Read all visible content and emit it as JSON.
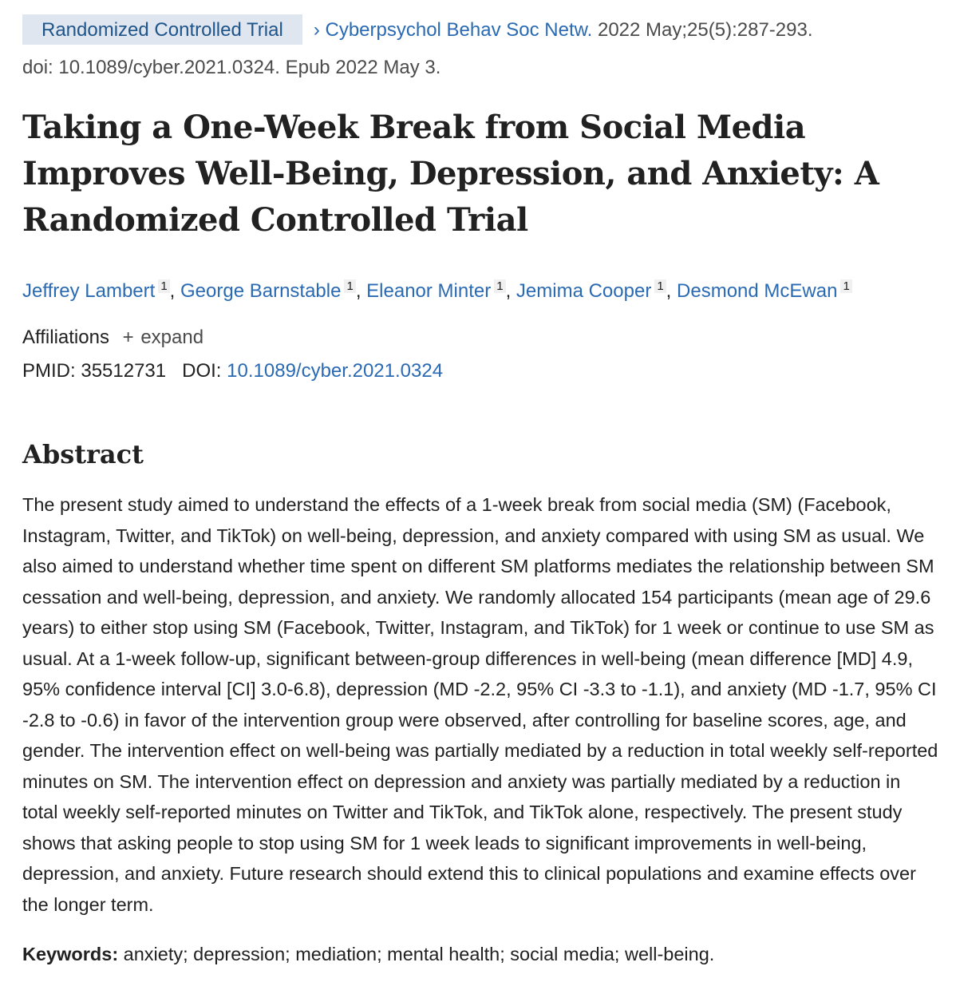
{
  "header": {
    "publication_type": "Randomized Controlled Trial",
    "journal": "Cyberpsychol Behav Soc Netw.",
    "citation": " 2022 May;25(5):287-293.",
    "doi_epub": "doi: 10.1089/cyber.2021.0324. Epub 2022 May 3."
  },
  "title": "Taking a One-Week Break from Social Media Improves Well-Being, Depression, and Anxiety: A Randomized Controlled Trial",
  "authors": [
    {
      "name": "Jeffrey Lambert",
      "aff": "1"
    },
    {
      "name": "George Barnstable",
      "aff": "1"
    },
    {
      "name": "Eleanor Minter",
      "aff": "1"
    },
    {
      "name": "Jemima Cooper",
      "aff": "1"
    },
    {
      "name": "Desmond McEwan",
      "aff": "1"
    }
  ],
  "affiliations": {
    "label": "Affiliations",
    "expand_icon": "plus-icon",
    "expand_label": "expand"
  },
  "ids": {
    "pmid_label": "PMID:",
    "pmid": "35512731",
    "doi_label": "DOI:",
    "doi": "10.1089/cyber.2021.0324"
  },
  "abstract": {
    "heading": "Abstract",
    "text": "The present study aimed to understand the effects of a 1-week break from social media (SM) (Facebook, Instagram, Twitter, and TikTok) on well-being, depression, and anxiety compared with using SM as usual. We also aimed to understand whether time spent on different SM platforms mediates the relationship between SM cessation and well-being, depression, and anxiety. We randomly allocated 154 participants (mean age of 29.6 years) to either stop using SM (Facebook, Twitter, Instagram, and TikTok) for 1 week or continue to use SM as usual. At a 1-week follow-up, significant between-group differences in well-being (mean difference [MD] 4.9, 95% confidence interval [CI] 3.0-6.8), depression (MD -2.2, 95% CI -3.3 to -1.1), and anxiety (MD -1.7, 95% CI -2.8 to -0.6) in favor of the intervention group were observed, after controlling for baseline scores, age, and gender. The intervention effect on well-being was partially mediated by a reduction in total weekly self-reported minutes on SM. The intervention effect on depression and anxiety was partially mediated by a reduction in total weekly self-reported minutes on Twitter and TikTok, and TikTok alone, respectively. The present study shows that asking people to stop using SM for 1 week leads to significant improvements in well-being, depression, and anxiety. Future research should extend this to clinical populations and examine effects over the longer term.",
    "keywords_label": "Keywords:",
    "keywords": " anxiety; depression; mediation; mental health; social media; well-being."
  },
  "colors": {
    "link": "#2a6ab3",
    "badge_bg": "#dfe6f0",
    "badge_text": "#20558a"
  }
}
